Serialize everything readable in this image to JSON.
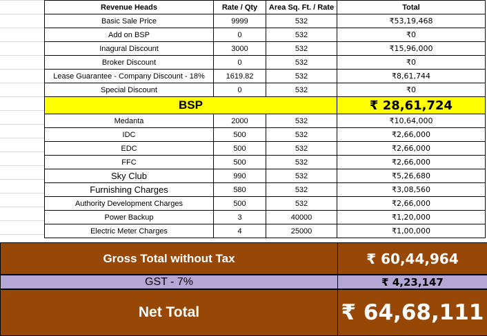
{
  "headers": {
    "revenue_heads": "Revenue Heads",
    "rate_qty": "Rate / Qty",
    "area_rate": "Area  Sq. Ft. /  Rate",
    "total": "Total"
  },
  "rows_top": [
    {
      "head": "Basic Sale Price",
      "rate": "9999",
      "area": "532",
      "total": "₹53,19,468"
    },
    {
      "head": "Add on BSP",
      "rate": "0",
      "area": "532",
      "total": "₹0"
    },
    {
      "head": "Inagural Discount",
      "rate": "3000",
      "area": "532",
      "total": "₹15,96,000"
    },
    {
      "head": "Broker Discount",
      "rate": "0",
      "area": "532",
      "total": "₹0"
    },
    {
      "head": "Lease Guarantee - Company Discount - 18%",
      "rate": "1619.82",
      "area": "532",
      "total": "₹8,61,744"
    },
    {
      "head": "Special Discount",
      "rate": "0",
      "area": "532",
      "total": "₹0"
    }
  ],
  "bsp": {
    "label": "BSP",
    "value": "₹ 28,61,724"
  },
  "rows_bottom": [
    {
      "head": "Medanta",
      "rate": "2000",
      "area": "532",
      "total": "₹10,64,000"
    },
    {
      "head": "IDC",
      "rate": "500",
      "area": "532",
      "total": "₹2,66,000"
    },
    {
      "head": "EDC",
      "rate": "500",
      "area": "532",
      "total": "₹2,66,000"
    },
    {
      "head": "FFC",
      "rate": "500",
      "area": "532",
      "total": "₹2,66,000"
    },
    {
      "head": "Sky Club",
      "rate": "990",
      "area": "532",
      "total": "₹5,26,680"
    },
    {
      "head": "Furnishing Charges",
      "rate": "580",
      "area": "532",
      "total": "₹3,08,560"
    },
    {
      "head": "Authority Development Charges",
      "rate": "500",
      "area": "532",
      "total": "₹2,66,000"
    },
    {
      "head": "Power Backup",
      "rate": "3",
      "area": "40000",
      "total": "₹1,20,000"
    },
    {
      "head": "Electric Meter Charges",
      "rate": "4",
      "area": "25000",
      "total": "₹1,00,000"
    }
  ],
  "gross": {
    "label": "Gross Total without Tax",
    "value": "₹ 60,44,964"
  },
  "gst": {
    "label": "GST - 7%",
    "value": "₹ 4,23,147"
  },
  "net": {
    "label": "Net Total",
    "value": "₹ 64,68,111"
  },
  "colors": {
    "bsp_bg": "#ffff00",
    "total_bg": "#974806",
    "gst_bg": "#b4a7d6"
  }
}
